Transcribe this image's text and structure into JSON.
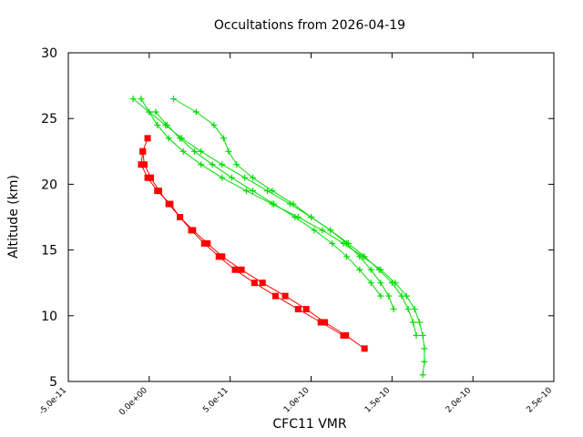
{
  "chart_data": {
    "type": "line",
    "title": "Occultations from 2026-04-19",
    "xlabel": "CFC11 VMR",
    "ylabel": "Altitude (km)",
    "xlim": [
      -5e-11,
      2.5e-10
    ],
    "ylim": [
      5,
      30
    ],
    "xticks": [
      -5e-11,
      0,
      5e-11,
      1e-10,
      1.5e-10,
      2e-10,
      2.5e-10
    ],
    "xtick_labels": [
      "-5.0e-11",
      "0.0e+00",
      "5.0e-11",
      "1.0e-10",
      "1.5e-10",
      "2.0e-10",
      "2.5e-10"
    ],
    "yticks": [
      5,
      10,
      15,
      20,
      25,
      30
    ],
    "ytick_labels": [
      "5",
      "10",
      "15",
      "20",
      "25",
      "30"
    ],
    "grid": false,
    "series": [
      {
        "color": "#ff0000",
        "marker": "square",
        "points": [
          [
            -1e-12,
            23.5
          ],
          [
            -4e-12,
            22.5
          ],
          [
            -3e-12,
            21.5
          ],
          [
            1e-12,
            20.5
          ],
          [
            6e-12,
            19.5
          ],
          [
            1.2e-11,
            18.5
          ],
          [
            1.9e-11,
            17.5
          ],
          [
            2.7e-11,
            16.5
          ],
          [
            3.6e-11,
            15.5
          ],
          [
            4.5e-11,
            14.5
          ],
          [
            5.7e-11,
            13.5
          ],
          [
            7e-11,
            12.5
          ],
          [
            8.4e-11,
            11.5
          ],
          [
            9.7e-11,
            10.5
          ],
          [
            1.085e-10,
            9.5
          ],
          [
            1.215e-10,
            8.5
          ],
          [
            1.33e-10,
            7.5
          ]
        ]
      },
      {
        "color": "#ff0000",
        "marker": "square",
        "points": [
          [
            -4e-12,
            22.5
          ],
          [
            -5e-12,
            21.5
          ],
          [
            -1e-12,
            20.5
          ],
          [
            5e-12,
            19.5
          ],
          [
            1.3e-11,
            18.5
          ],
          [
            1.9e-11,
            17.5
          ],
          [
            2.6e-11,
            16.5
          ],
          [
            3.4e-11,
            15.5
          ],
          [
            4.3e-11,
            14.5
          ],
          [
            5.3e-11,
            13.5
          ],
          [
            6.5e-11,
            12.5
          ],
          [
            7.8e-11,
            11.5
          ],
          [
            9.2e-11,
            10.5
          ],
          [
            1.06e-10,
            9.5
          ],
          [
            1.2e-10,
            8.5
          ]
        ]
      },
      {
        "color": "#00dd00",
        "marker": "plus",
        "points": [
          [
            -5e-12,
            26.5
          ],
          [
            0.0,
            25.5
          ],
          [
            5e-12,
            24.5
          ],
          [
            1.2e-11,
            23.5
          ],
          [
            2.1e-11,
            22.5
          ],
          [
            3.2e-11,
            21.5
          ],
          [
            4.5e-11,
            20.5
          ],
          [
            6e-11,
            19.5
          ],
          [
            7.6e-11,
            18.5
          ],
          [
            9.2e-11,
            17.5
          ],
          [
            1.07e-10,
            16.5
          ],
          [
            1.2e-10,
            15.5
          ],
          [
            1.32e-10,
            14.5
          ],
          [
            1.43e-10,
            13.5
          ],
          [
            1.52e-10,
            12.5
          ],
          [
            1.59e-10,
            11.5
          ],
          [
            1.64e-10,
            10.5
          ],
          [
            1.67e-10,
            9.5
          ],
          [
            1.69e-10,
            8.5
          ],
          [
            1.7e-10,
            7.5
          ],
          [
            1.7e-10,
            6.5
          ],
          [
            1.69e-10,
            5.5
          ]
        ]
      },
      {
        "color": "#00dd00",
        "marker": "plus",
        "points": [
          [
            1.5e-11,
            26.5
          ],
          [
            2.9e-11,
            25.5
          ],
          [
            4e-11,
            24.5
          ],
          [
            4.6e-11,
            23.5
          ],
          [
            4.9e-11,
            22.5
          ],
          [
            5.4e-11,
            21.5
          ],
          [
            6.4e-11,
            20.5
          ],
          [
            7.6e-11,
            19.5
          ],
          [
            8.9e-11,
            18.5
          ],
          [
            1e-10,
            17.5
          ],
          [
            1.12e-10,
            16.5
          ],
          [
            1.23e-10,
            15.5
          ],
          [
            1.33e-10,
            14.5
          ],
          [
            1.42e-10,
            13.5
          ],
          [
            1.5e-10,
            12.5
          ],
          [
            1.56e-10,
            11.5
          ],
          [
            1.6e-10,
            10.5
          ],
          [
            1.63e-10,
            9.5
          ],
          [
            1.65e-10,
            8.5
          ]
        ]
      },
      {
        "color": "#00dd00",
        "marker": "plus",
        "points": [
          [
            -1e-11,
            26.5
          ],
          [
            0.0,
            25.5
          ],
          [
            1e-11,
            24.5
          ],
          [
            2e-11,
            23.5
          ],
          [
            3.2e-11,
            22.5
          ],
          [
            4.5e-11,
            21.5
          ],
          [
            5.9e-11,
            20.5
          ],
          [
            7.3e-11,
            19.5
          ],
          [
            8.7e-11,
            18.5
          ],
          [
            1e-10,
            17.5
          ],
          [
            1.12e-10,
            16.5
          ],
          [
            1.22e-10,
            15.5
          ],
          [
            1.3e-10,
            14.5
          ],
          [
            1.37e-10,
            13.5
          ],
          [
            1.43e-10,
            12.5
          ],
          [
            1.48e-10,
            11.5
          ],
          [
            1.51e-10,
            10.5
          ]
        ]
      },
      {
        "color": "#00dd00",
        "marker": "plus",
        "points": [
          [
            4e-12,
            25.5
          ],
          [
            1.1e-11,
            24.5
          ],
          [
            1.9e-11,
            23.5
          ],
          [
            2.8e-11,
            22.5
          ],
          [
            3.9e-11,
            21.5
          ],
          [
            5.1e-11,
            20.5
          ],
          [
            6.4e-11,
            19.5
          ],
          [
            7.7e-11,
            18.5
          ],
          [
            9e-11,
            17.5
          ],
          [
            1.02e-10,
            16.5
          ],
          [
            1.13e-10,
            15.5
          ],
          [
            1.22e-10,
            14.5
          ],
          [
            1.3e-10,
            13.5
          ],
          [
            1.37e-10,
            12.5
          ],
          [
            1.43e-10,
            11.5
          ]
        ]
      }
    ]
  }
}
